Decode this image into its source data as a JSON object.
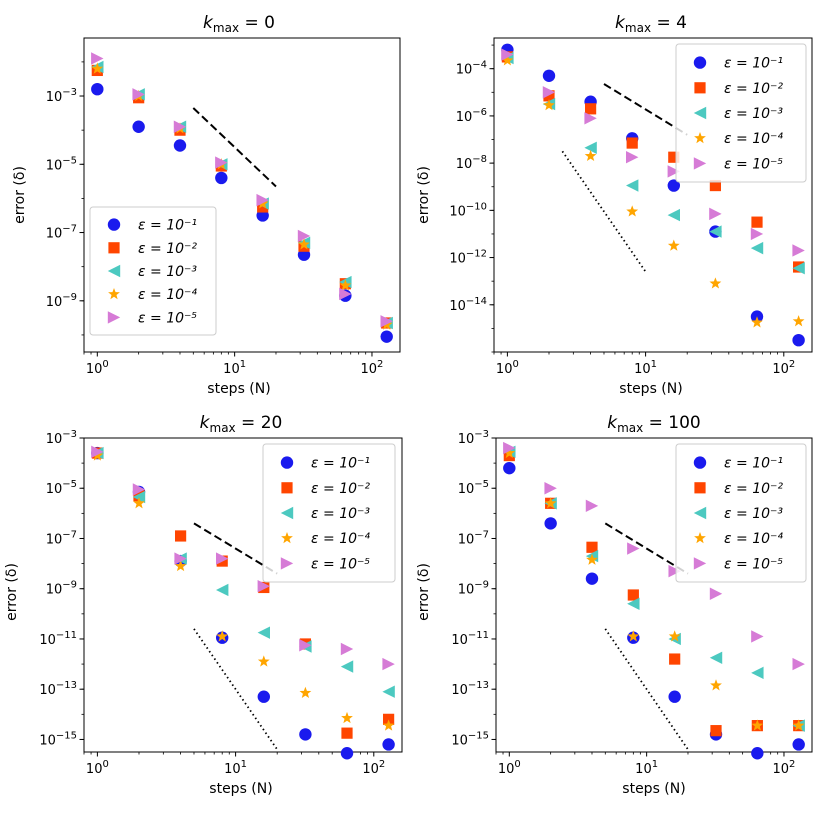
{
  "figure": {
    "xlabel": "steps (N)",
    "ylabel": "error (δ)"
  },
  "legend_labels": [
    "ε = 10⁻¹",
    "ε = 10⁻²",
    "ε = 10⁻³",
    "ε = 10⁻⁴",
    "ε = 10⁻⁵"
  ],
  "colors": {
    "eps1": "#1a1aee",
    "eps2": "#ff4500",
    "eps3": "#4cc9c0",
    "eps4": "#ffa500",
    "eps5": "#d67bd6",
    "guide": "#000000"
  },
  "chart_data": [
    {
      "type": "scatter",
      "title": "k_max = 0",
      "title_base": "k",
      "title_sub": "max",
      "title_rest": " = 0",
      "xlabel": "steps (N)",
      "ylabel": "error (δ)",
      "xscale": "log",
      "yscale": "log",
      "xlim": [
        0.8,
        160
      ],
      "ylim_exp": [
        -10.5,
        -1.3
      ],
      "x_ticks": [
        {
          "value": 1,
          "base": "10",
          "exp": "0"
        },
        {
          "value": 10,
          "base": "10",
          "exp": "1"
        },
        {
          "value": 100,
          "base": "10",
          "exp": "2"
        }
      ],
      "y_ticks": [
        {
          "exp_value": -3,
          "base": "10",
          "exp": "−3"
        },
        {
          "exp_value": -5,
          "base": "10",
          "exp": "−5"
        },
        {
          "exp_value": -7,
          "base": "10",
          "exp": "−7"
        },
        {
          "exp_value": -9,
          "base": "10",
          "exp": "−9"
        }
      ],
      "legend_position": "lower-left",
      "x": [
        1,
        2,
        4,
        8,
        16,
        32,
        64,
        128
      ],
      "series": [
        {
          "name": "ε = 10⁻¹",
          "marker": "circle",
          "color": "#1a1aee",
          "log10_y": [
            -2.8,
            -3.9,
            -4.45,
            -5.4,
            -6.5,
            -7.65,
            -8.85,
            -10.05
          ]
        },
        {
          "name": "ε = 10⁻²",
          "marker": "square",
          "color": "#ff4500",
          "log10_y": [
            -2.25,
            -3.05,
            -4.0,
            -5.05,
            -6.25,
            -7.4,
            -8.5,
            -9.65
          ]
        },
        {
          "name": "ε = 10⁻³",
          "marker": "triangle-left",
          "color": "#4cc9c0",
          "log10_y": [
            -2.15,
            -2.95,
            -3.9,
            -5.0,
            -6.15,
            -7.3,
            -8.45,
            -9.65
          ]
        },
        {
          "name": "ε = 10⁻⁴",
          "marker": "star",
          "color": "#ffa500",
          "log10_y": [
            -2.2,
            -3.0,
            -3.95,
            -5.0,
            -6.15,
            -7.35,
            -8.55,
            -9.7
          ]
        },
        {
          "name": "ε = 10⁻⁵",
          "marker": "triangle-right",
          "color": "#d67bd6",
          "log10_y": [
            -1.9,
            -2.95,
            -3.9,
            -4.95,
            -6.05,
            -7.1,
            -8.8,
            -9.6
          ]
        }
      ],
      "reference_lines": [
        {
          "style": "dashed",
          "x": [
            5,
            20
          ],
          "log10_y": [
            -3.35,
            -5.65
          ]
        }
      ]
    },
    {
      "type": "scatter",
      "title": "k_max = 4",
      "title_base": "k",
      "title_sub": "max",
      "title_rest": " = 4",
      "xlabel": "steps (N)",
      "ylabel": "error (δ)",
      "xscale": "log",
      "yscale": "log",
      "xlim": [
        0.8,
        160
      ],
      "ylim_exp": [
        -16.0,
        -2.7
      ],
      "x_ticks": [
        {
          "value": 1,
          "base": "10",
          "exp": "0"
        },
        {
          "value": 10,
          "base": "10",
          "exp": "1"
        },
        {
          "value": 100,
          "base": "10",
          "exp": "2"
        }
      ],
      "y_ticks": [
        {
          "exp_value": -4,
          "base": "10",
          "exp": "−4"
        },
        {
          "exp_value": -6,
          "base": "10",
          "exp": "−6"
        },
        {
          "exp_value": -8,
          "base": "10",
          "exp": "−8"
        },
        {
          "exp_value": -10,
          "base": "10",
          "exp": "−10"
        },
        {
          "exp_value": -12,
          "base": "10",
          "exp": "−12"
        },
        {
          "exp_value": -14,
          "base": "10",
          "exp": "−14"
        }
      ],
      "legend_position": "upper-right",
      "x": [
        1,
        2,
        4,
        8,
        16,
        32,
        64,
        128
      ],
      "series": [
        {
          "name": "ε = 10⁻¹",
          "marker": "circle",
          "color": "#1a1aee",
          "log10_y": [
            -3.2,
            -4.3,
            -5.4,
            -6.95,
            -8.95,
            -10.9,
            -14.5,
            -15.5
          ]
        },
        {
          "name": "ε = 10⁻²",
          "marker": "square",
          "color": "#ff4500",
          "log10_y": [
            -3.5,
            -5.15,
            -5.7,
            -7.15,
            -7.75,
            -8.95,
            -10.5,
            -12.4
          ]
        },
        {
          "name": "ε = 10⁻³",
          "marker": "triangle-left",
          "color": "#4cc9c0",
          "log10_y": [
            -3.55,
            -5.5,
            -7.35,
            -8.95,
            -10.2,
            -10.9,
            -11.6,
            -12.45
          ]
        },
        {
          "name": "ε = 10⁻⁴",
          "marker": "star",
          "color": "#ffa500",
          "log10_y": [
            -3.65,
            -5.55,
            -7.7,
            -10.05,
            -11.5,
            -13.1,
            -14.75,
            -14.7
          ]
        },
        {
          "name": "ε = 10⁻⁵",
          "marker": "triangle-right",
          "color": "#d67bd6",
          "log10_y": [
            -3.4,
            -5.0,
            -6.1,
            -7.75,
            -8.35,
            -10.15,
            -11.0,
            -11.7
          ]
        }
      ],
      "reference_lines": [
        {
          "style": "dashed",
          "x": [
            5,
            20
          ],
          "log10_y": [
            -4.65,
            -6.8
          ]
        },
        {
          "style": "dotted",
          "x": [
            2.5,
            10
          ],
          "log10_y": [
            -7.5,
            -12.6
          ]
        }
      ]
    },
    {
      "type": "scatter",
      "title": "k_max = 20",
      "title_base": "k",
      "title_sub": "max",
      "title_rest": " = 20",
      "xlabel": "steps (N)",
      "ylabel": "error (δ)",
      "xscale": "log",
      "yscale": "log",
      "xlim": [
        0.8,
        160
      ],
      "ylim_exp": [
        -15.5,
        -3.0
      ],
      "x_ticks": [
        {
          "value": 1,
          "base": "10",
          "exp": "0"
        },
        {
          "value": 10,
          "base": "10",
          "exp": "1"
        },
        {
          "value": 100,
          "base": "10",
          "exp": "2"
        }
      ],
      "y_ticks": [
        {
          "exp_value": -3,
          "base": "10",
          "exp": "−3"
        },
        {
          "exp_value": -5,
          "base": "10",
          "exp": "−5"
        },
        {
          "exp_value": -7,
          "base": "10",
          "exp": "−7"
        },
        {
          "exp_value": -9,
          "base": "10",
          "exp": "−9"
        },
        {
          "exp_value": -11,
          "base": "10",
          "exp": "−11"
        },
        {
          "exp_value": -13,
          "base": "10",
          "exp": "−13"
        },
        {
          "exp_value": -15,
          "base": "10",
          "exp": "−15"
        }
      ],
      "legend_position": "upper-right",
      "x": [
        1,
        2,
        4,
        8,
        16,
        32,
        64,
        128
      ],
      "series": [
        {
          "name": "ε = 10⁻¹",
          "marker": "circle",
          "color": "#1a1aee",
          "log10_y": [
            -3.6,
            -5.15,
            -7.9,
            -10.95,
            -13.3,
            -14.8,
            -15.55,
            -15.2
          ]
        },
        {
          "name": "ε = 10⁻²",
          "marker": "square",
          "color": "#ff4500",
          "log10_y": [
            -3.6,
            -5.3,
            -6.9,
            -7.9,
            -8.95,
            -11.2,
            -14.75,
            -14.2
          ]
        },
        {
          "name": "ε = 10⁻³",
          "marker": "triangle-left",
          "color": "#4cc9c0",
          "log10_y": [
            -3.6,
            -5.35,
            -7.8,
            -9.05,
            -10.75,
            -11.3,
            -12.1,
            -13.1
          ]
        },
        {
          "name": "ε = 10⁻⁴",
          "marker": "star",
          "color": "#ffa500",
          "log10_y": [
            -3.7,
            -5.6,
            -8.1,
            -10.9,
            -11.9,
            -13.15,
            -14.15,
            -14.45
          ]
        },
        {
          "name": "ε = 10⁻⁵",
          "marker": "triangle-right",
          "color": "#d67bd6",
          "log10_y": [
            -3.55,
            -5.05,
            -7.8,
            -7.8,
            -8.9,
            -11.25,
            -11.4,
            -12.0
          ]
        }
      ],
      "reference_lines": [
        {
          "style": "dashed",
          "x": [
            5,
            20
          ],
          "log10_y": [
            -6.4,
            -8.4
          ]
        },
        {
          "style": "dotted",
          "x": [
            5,
            20
          ],
          "log10_y": [
            -10.6,
            -15.4
          ]
        }
      ]
    },
    {
      "type": "scatter",
      "title": "k_max = 100",
      "title_base": "k",
      "title_sub": "max",
      "title_rest": " = 100",
      "xlabel": "steps (N)",
      "ylabel": "error (δ)",
      "xscale": "log",
      "yscale": "log",
      "xlim": [
        0.8,
        160
      ],
      "ylim_exp": [
        -15.5,
        -3.0
      ],
      "x_ticks": [
        {
          "value": 1,
          "base": "10",
          "exp": "0"
        },
        {
          "value": 10,
          "base": "10",
          "exp": "1"
        },
        {
          "value": 100,
          "base": "10",
          "exp": "2"
        }
      ],
      "y_ticks": [
        {
          "exp_value": -3,
          "base": "10",
          "exp": "−3"
        },
        {
          "exp_value": -5,
          "base": "10",
          "exp": "−5"
        },
        {
          "exp_value": -7,
          "base": "10",
          "exp": "−7"
        },
        {
          "exp_value": -9,
          "base": "10",
          "exp": "−9"
        },
        {
          "exp_value": -11,
          "base": "10",
          "exp": "−11"
        },
        {
          "exp_value": -13,
          "base": "10",
          "exp": "−13"
        },
        {
          "exp_value": -15,
          "base": "10",
          "exp": "−15"
        }
      ],
      "legend_position": "upper-right",
      "x": [
        1,
        2,
        4,
        8,
        16,
        32,
        64,
        128
      ],
      "series": [
        {
          "name": "ε = 10⁻¹",
          "marker": "circle",
          "color": "#1a1aee",
          "log10_y": [
            -4.2,
            -6.4,
            -8.6,
            -10.95,
            -13.3,
            -14.8,
            -15.55,
            -15.2
          ]
        },
        {
          "name": "ε = 10⁻²",
          "marker": "square",
          "color": "#ff4500",
          "log10_y": [
            -3.7,
            -5.6,
            -7.35,
            -9.25,
            -11.8,
            -14.65,
            -14.45,
            -14.45
          ]
        },
        {
          "name": "ε = 10⁻³",
          "marker": "triangle-left",
          "color": "#4cc9c0",
          "log10_y": [
            -3.55,
            -5.6,
            -7.7,
            -9.6,
            -11.0,
            -11.75,
            -12.35,
            -14.45
          ]
        },
        {
          "name": "ε = 10⁻⁴",
          "marker": "star",
          "color": "#ffa500",
          "log10_y": [
            -3.6,
            -5.6,
            -7.85,
            -10.9,
            -10.9,
            -12.85,
            -14.45,
            -14.45
          ]
        },
        {
          "name": "ε = 10⁻⁵",
          "marker": "triangle-right",
          "color": "#d67bd6",
          "log10_y": [
            -3.4,
            -5.0,
            -5.7,
            -7.4,
            -8.3,
            -9.2,
            -10.9,
            -12.0
          ]
        }
      ],
      "reference_lines": [
        {
          "style": "dashed",
          "x": [
            5,
            20
          ],
          "log10_y": [
            -6.4,
            -8.4
          ]
        },
        {
          "style": "dotted",
          "x": [
            5,
            20
          ],
          "log10_y": [
            -10.6,
            -15.4
          ]
        }
      ]
    }
  ]
}
